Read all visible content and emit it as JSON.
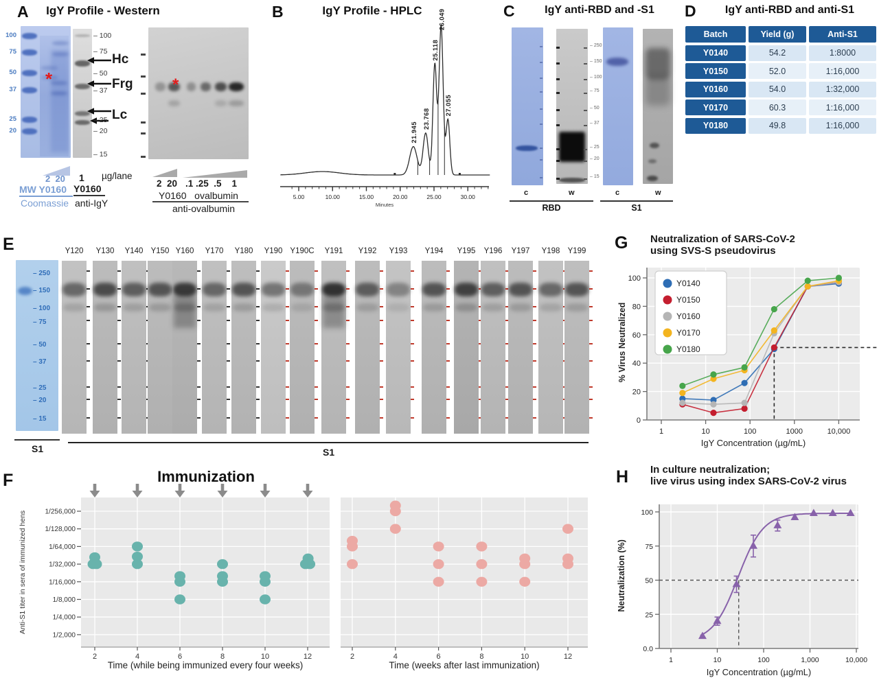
{
  "panel_a": {
    "label": "A",
    "title": "IgY Profile - Western",
    "coomassie_markers": [
      "100",
      "75",
      "50",
      "37",
      "25",
      "20"
    ],
    "blot_markers": [
      "100",
      "75",
      "50",
      "37",
      "25",
      "20",
      "15"
    ],
    "band_labels": [
      "Hc",
      "Frg",
      "Lc"
    ],
    "asterisk": "*",
    "doses_left": "2  20",
    "dose_mid": "1",
    "dose_units": "µg/lane",
    "left_group_line1": "MW Y0160",
    "left_group_line2": "Coomassie",
    "mid_group_line1": "Y0160",
    "mid_group_line2": "anti-IgY",
    "right_doses_1": "2  20",
    "right_doses_2": ".1 .25  .5    1",
    "right_group_line1": "Y0160   ovalbumin",
    "right_group_line2": "anti-ovalbumin"
  },
  "panel_b": {
    "label": "B",
    "title": "IgY Profile - HPLC"
  },
  "panel_c": {
    "label": "C",
    "title": "IgY anti-RBD and -S1",
    "mw_markers": [
      "250",
      "150",
      "100",
      "75",
      "50",
      "37",
      "25",
      "20",
      "15"
    ],
    "lane_labels": [
      "c",
      "w",
      "c",
      "w"
    ],
    "group_labels": [
      "RBD",
      "S1"
    ]
  },
  "panel_d": {
    "label": "D",
    "title": "IgY anti-RBD and anti-S1",
    "headers": [
      "Batch",
      "Yield (g)",
      "Anti-S1"
    ],
    "rows": [
      [
        "Y0140",
        "54.2",
        "1:8000"
      ],
      [
        "Y0150",
        "52.0",
        "1:16,000"
      ],
      [
        "Y0160",
        "54.0",
        "1:32,000"
      ],
      [
        "Y0170",
        "60.3",
        "1:16,000"
      ],
      [
        "Y0180",
        "49.8",
        "1:16,000"
      ]
    ]
  },
  "panel_e": {
    "label": "E",
    "ladder_markers": [
      "250",
      "150",
      "100",
      "75",
      "50",
      "37",
      "25",
      "20",
      "15"
    ],
    "ladder_label": "S1",
    "lanes": [
      "Y120",
      "Y130",
      "Y140",
      "Y150",
      "Y160",
      "Y170",
      "Y180",
      "Y190",
      "Y190C",
      "Y191",
      "Y192",
      "Y193",
      "Y194",
      "Y195",
      "Y196",
      "Y197",
      "Y198",
      "Y199"
    ],
    "group_label": "S1"
  },
  "panel_f": {
    "label": "F",
    "title": "Immunization"
  },
  "panel_g": {
    "label": "G",
    "title_line1": "Neutralization of SARS-CoV-2",
    "title_line2": "using SVS-S pseudovirus"
  },
  "panel_h": {
    "label": "H",
    "title_line1": "In culture neutralization;",
    "title_line2": "live virus using index SARS-CoV-2 virus"
  },
  "chart_data": [
    {
      "id": "hplc",
      "type": "line",
      "title": "IgY Profile - HPLC",
      "xlabel": "Minutes",
      "x_ticks": [
        5,
        10,
        15,
        20,
        25,
        30
      ],
      "x_tick_labels": [
        "5.00",
        "10.00",
        "15.00",
        "20.00",
        "25.00",
        "30.00"
      ],
      "peak_labels": [
        "21.945",
        "23.768",
        "25.118",
        "26.049",
        "27.055"
      ],
      "peaks_rt": [
        21.945,
        23.768,
        25.118,
        26.049,
        27.055
      ],
      "peaks_rel_height": [
        0.19,
        0.28,
        0.74,
        1.0,
        0.37
      ]
    },
    {
      "id": "immunization_during",
      "type": "scatter",
      "marker_color": "#68b3ac",
      "xlabel": "Time (while being immunized every four weeks)",
      "ylabel": "Anti-S1 titer in sera of immunized hens",
      "x_ticks": [
        2,
        4,
        6,
        8,
        10,
        12
      ],
      "y_tick_labels": [
        "1/256,000",
        "1/128,000",
        "1/64,000",
        "1/32,000",
        "1/16,000",
        "1/8,000",
        "1/4,000",
        "1/2,000"
      ],
      "y_tick_values": [
        256000,
        128000,
        64000,
        32000,
        16000,
        8000,
        4000,
        2000
      ],
      "points": [
        [
          1.92,
          32000
        ],
        [
          2.08,
          32000
        ],
        [
          2.0,
          42000
        ],
        [
          4,
          64000
        ],
        [
          4,
          43000
        ],
        [
          4,
          32000
        ],
        [
          6,
          20000
        ],
        [
          6,
          16000
        ],
        [
          6,
          8000
        ],
        [
          8,
          32000
        ],
        [
          8,
          20000
        ],
        [
          8,
          16000
        ],
        [
          10,
          20000
        ],
        [
          10,
          16000
        ],
        [
          10,
          8000
        ],
        [
          11.9,
          32000
        ],
        [
          12.1,
          32000
        ],
        [
          12.02,
          40000
        ]
      ]
    },
    {
      "id": "immunization_after",
      "type": "scatter",
      "marker_color": "#eca9a4",
      "xlabel": "Time (weeks after last immunization)",
      "x_ticks": [
        2,
        4,
        6,
        8,
        10,
        12
      ],
      "points": [
        [
          2,
          80000
        ],
        [
          2,
          64000
        ],
        [
          2,
          32000
        ],
        [
          4,
          320000
        ],
        [
          4,
          256000
        ],
        [
          4,
          128000
        ],
        [
          6,
          64000
        ],
        [
          6,
          32000
        ],
        [
          6,
          16000
        ],
        [
          8,
          64000
        ],
        [
          8,
          32000
        ],
        [
          8,
          16000
        ],
        [
          10,
          40000
        ],
        [
          10,
          32000
        ],
        [
          10,
          16000
        ],
        [
          12,
          128000
        ],
        [
          12,
          40000
        ],
        [
          12,
          32000
        ]
      ]
    },
    {
      "id": "pseudovirus_neutralization",
      "type": "line",
      "title": "Neutralization of SARS-CoV-2 using SVS-S pseudovirus",
      "xlabel": "IgY Concentration (µg/mL)",
      "ylabel": "% Virus Neutralized",
      "x": [
        3,
        15,
        75,
        350,
        2000,
        10000
      ],
      "series": [
        {
          "name": "Y0140",
          "color": "#2e6db4",
          "values": [
            15,
            14,
            26,
            50,
            94,
            96
          ]
        },
        {
          "name": "Y0150",
          "color": "#c41e2f",
          "values": [
            11,
            5,
            8,
            51,
            94,
            97
          ]
        },
        {
          "name": "Y0160",
          "color": "#b5b5b5",
          "values": [
            12,
            11,
            12,
            61,
            94,
            97
          ]
        },
        {
          "name": "Y0170",
          "color": "#f3b41f",
          "values": [
            19,
            29,
            35,
            63,
            94,
            98
          ]
        },
        {
          "name": "Y0180",
          "color": "#47a54b",
          "values": [
            24,
            32,
            37,
            78,
            98,
            100
          ]
        }
      ],
      "y_ticks": [
        0,
        20,
        40,
        60,
        80,
        100
      ],
      "x_tick_labels": [
        "1",
        "10",
        "100",
        "1000",
        "10,000"
      ],
      "dashed_crosshair": {
        "y": 51,
        "x": 350
      }
    },
    {
      "id": "live_virus_neutralization",
      "type": "line",
      "title": "In culture neutralization; live virus using index SARS-CoV-2 virus",
      "xlabel": "IgY Concentration (µg/mL)",
      "ylabel": "Neutralization (%)",
      "marker_color": "#8862aa",
      "x": [
        4.8,
        10,
        26,
        60,
        200,
        470,
        1200,
        3100,
        7500
      ],
      "y": [
        9,
        20,
        47,
        75,
        90,
        96,
        99,
        99,
        99
      ],
      "yerr": [
        0,
        3,
        6,
        8,
        4,
        0,
        0,
        0,
        0
      ],
      "y_tick_labels": [
        "0.0",
        "25",
        "50",
        "75",
        "100"
      ],
      "y_tick_values": [
        0,
        25,
        50,
        75,
        100
      ],
      "x_tick_labels": [
        "1",
        "10",
        "100",
        "1,000",
        "10,000"
      ],
      "dashed_crosshair": {
        "y": 50,
        "x": 29
      }
    }
  ]
}
